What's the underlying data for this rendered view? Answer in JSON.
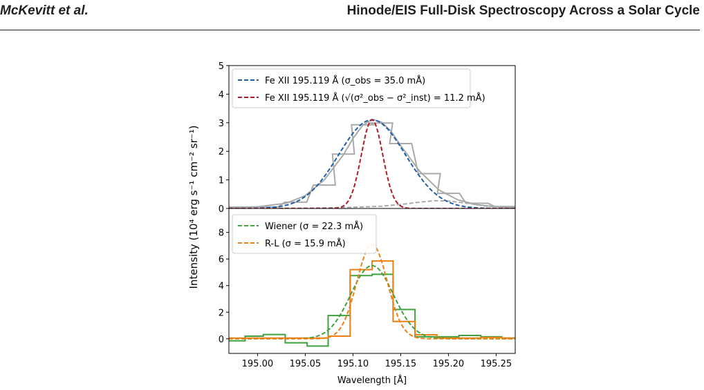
{
  "header": {
    "authors": "McKevitt et al.",
    "title": "Hinode/EIS Full-Disk Spectroscopy Across a Solar Cycle"
  },
  "chart_data": [
    {
      "type": "line",
      "panel": "top",
      "ylim": [
        0,
        5
      ],
      "xlim": [
        194.97,
        195.27
      ],
      "yticks": [
        0,
        1,
        2,
        3,
        4,
        5
      ],
      "series": [
        {
          "name": "",
          "kind": "step",
          "color": "#a9a9a9",
          "x": [
            194.98,
            195.01,
            195.04,
            195.07,
            195.09,
            195.11,
            195.13,
            195.15,
            195.18,
            195.2,
            195.23,
            195.26
          ],
          "values": [
            0.05,
            0.05,
            0.22,
            0.82,
            1.9,
            2.93,
            2.99,
            2.27,
            1.22,
            0.53,
            0.18,
            0.07
          ]
        },
        {
          "name": "",
          "kind": "line",
          "color": "#a9a9a9",
          "x": [
            194.97,
            195.0,
            195.03,
            195.05,
            195.07,
            195.09,
            195.1,
            195.11,
            195.12,
            195.13,
            195.14,
            195.15,
            195.17,
            195.19,
            195.21,
            195.23,
            195.25,
            195.27
          ],
          "values": [
            0.02,
            0.06,
            0.18,
            0.45,
            1.0,
            1.88,
            2.45,
            2.9,
            3.12,
            3.02,
            2.7,
            2.2,
            1.3,
            0.65,
            0.3,
            0.13,
            0.06,
            0.03
          ]
        },
        {
          "name": "",
          "kind": "dashed",
          "color": "#a9a9a9",
          "x": [
            194.97,
            195.0,
            195.05,
            195.1,
            195.13,
            195.15,
            195.17,
            195.185,
            195.2,
            195.22,
            195.24,
            195.27
          ],
          "values": [
            0.0,
            0.0,
            0.01,
            0.04,
            0.08,
            0.14,
            0.22,
            0.27,
            0.26,
            0.18,
            0.08,
            0.02
          ]
        },
        {
          "name": "Fe XII 195.119 Å (σ_obs = 35.0 mÅ)",
          "kind": "dashed",
          "color": "#1f5fa8",
          "fn": "gauss",
          "mu": 195.12,
          "sigma": 0.035,
          "amp": 3.1
        },
        {
          "name": "Fe XII 195.119 Å (√(σ²_obs − σ²_inst) = 11.2 mÅ)",
          "kind": "dashed",
          "color": "#b2182b",
          "fn": "gauss",
          "mu": 195.12,
          "sigma": 0.0112,
          "amp": 3.1
        }
      ]
    },
    {
      "type": "line",
      "panel": "bottom",
      "xlabel": "Wavelength [Å]",
      "ylim": [
        -1.1,
        9.8
      ],
      "xlim": [
        194.97,
        195.27
      ],
      "xticks": [
        "195.00",
        "195.05",
        "195.10",
        "195.15",
        "195.20",
        "195.25"
      ],
      "yticks": [
        0,
        2,
        4,
        6,
        8
      ],
      "series": [
        {
          "name": "",
          "kind": "step",
          "color": "#3fa13f",
          "edges": [
            194.97,
            194.987,
            195.006,
            195.029,
            195.052,
            195.074,
            195.097,
            195.12,
            195.142,
            195.165,
            195.188,
            195.211,
            195.234,
            195.256,
            195.27
          ],
          "values": [
            -0.15,
            0.2,
            0.32,
            -0.3,
            -0.55,
            1.75,
            4.75,
            4.85,
            2.2,
            0.15,
            0.15,
            0.25,
            0.15,
            0.05
          ]
        },
        {
          "name": "",
          "kind": "step",
          "color": "#ef7f12",
          "edges": [
            194.97,
            194.987,
            195.006,
            195.029,
            195.052,
            195.074,
            195.097,
            195.12,
            195.142,
            195.165,
            195.188,
            195.211,
            195.234,
            195.256,
            195.27
          ],
          "values": [
            0.05,
            0.05,
            0.05,
            0.05,
            0.05,
            0.2,
            5.2,
            5.85,
            1.3,
            0.3,
            0.05,
            0.05,
            0.1,
            0.05
          ]
        },
        {
          "name": "Wiener (σ = 22.3 mÅ)",
          "kind": "dashed",
          "color": "#3fa13f",
          "fn": "gauss",
          "mu": 195.12,
          "sigma": 0.0223,
          "amp": 5.5
        },
        {
          "name": "R-L (σ = 15.9 mÅ)",
          "kind": "dashed",
          "color": "#ef7f12",
          "fn": "gauss",
          "mu": 195.12,
          "sigma": 0.0159,
          "amp": 7.1
        }
      ]
    }
  ],
  "ylabel": "Intensity (10⁴ erg s⁻¹ cm⁻² sr⁻¹)"
}
